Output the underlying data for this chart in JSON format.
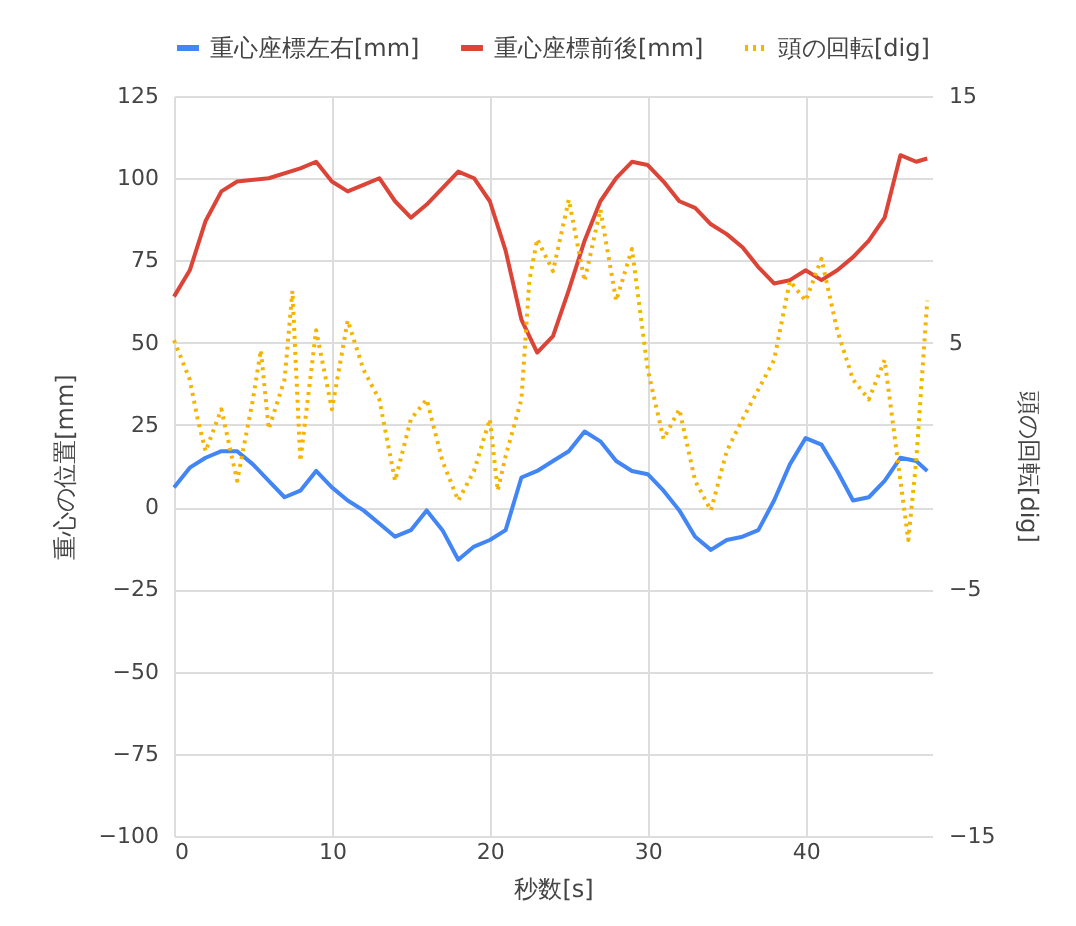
{
  "chart_data": {
    "type": "line",
    "xlabel": "秒数[s]",
    "ylabel": "重心の位置[mm]",
    "y2label": "頭の回転[dig]",
    "xlim": [
      0,
      48
    ],
    "xticks": [
      0,
      10,
      20,
      30,
      40
    ],
    "ylim": [
      -100,
      125
    ],
    "yticks": [
      -100,
      -75,
      -50,
      -25,
      0,
      25,
      50,
      75,
      100,
      125
    ],
    "y2lim": [
      -15,
      15
    ],
    "y2ticks": [
      -15,
      -5,
      5,
      15
    ],
    "grid": true,
    "legend": "top",
    "marker": "none",
    "series": [
      {
        "name": "重心座標左右[mm]",
        "color": "#4285f4",
        "line_style": "solid",
        "x": [
          0,
          1,
          2,
          3,
          4,
          5,
          6,
          7,
          8,
          9,
          10,
          11,
          12,
          13,
          14,
          15,
          16,
          17,
          18,
          19,
          20,
          21,
          22,
          23,
          24,
          25,
          26,
          27,
          28,
          29,
          30,
          31,
          32,
          33,
          34,
          35,
          36,
          37,
          38,
          39,
          40,
          41,
          42,
          43,
          44,
          45,
          46,
          47,
          47.7
        ],
        "values": [
          6,
          12,
          15,
          17,
          17,
          13,
          8,
          3,
          5,
          11,
          6,
          2,
          -1,
          -5,
          -9,
          -7,
          -1,
          -7,
          -16,
          -12,
          -10,
          -7,
          9,
          11,
          14,
          17,
          23,
          20,
          14,
          11,
          10,
          5,
          -1,
          -9,
          -13,
          -10,
          -9,
          -7,
          2,
          13,
          21,
          19,
          11,
          2,
          3,
          8,
          15,
          14,
          11
        ]
      },
      {
        "name": "重心座標前後[mm]",
        "color": "#db4437",
        "line_style": "solid",
        "x": [
          0,
          1,
          2,
          3,
          4,
          6,
          8,
          9,
          10,
          11,
          12,
          13,
          14,
          15,
          16,
          17,
          18,
          19,
          20,
          21,
          22,
          23,
          24,
          25,
          26,
          27,
          28,
          29,
          30,
          31,
          32,
          33,
          34,
          35,
          36,
          37,
          38,
          39,
          40,
          41,
          42,
          43,
          44,
          45,
          46,
          47,
          47.7
        ],
        "values": [
          64,
          72,
          87,
          96,
          99,
          100,
          103,
          105,
          99,
          96,
          98,
          100,
          93,
          88,
          92,
          97,
          102,
          100,
          93,
          78,
          57,
          47,
          52,
          66,
          81,
          93,
          100,
          105,
          104,
          99,
          93,
          91,
          86,
          83,
          79,
          73,
          68,
          69,
          72,
          69,
          72,
          76,
          81,
          88,
          107,
          105,
          106
        ]
      },
      {
        "name": "頭の回転[dig]",
        "color": "#f4b400",
        "line_style": "dotted",
        "axis": "y2",
        "x": [
          0,
          1,
          1.5,
          2,
          3,
          4,
          5,
          5.5,
          6,
          7,
          7.5,
          8,
          9,
          10,
          11,
          12,
          13,
          14,
          15,
          16,
          17,
          18,
          19,
          20,
          20.5,
          21,
          22,
          22.5,
          23,
          24,
          25,
          26,
          27,
          28,
          29,
          30,
          31,
          32,
          33,
          34,
          35,
          36,
          37,
          38,
          39,
          40,
          41,
          42,
          43,
          44,
          45,
          46,
          46.5,
          47,
          47.7
        ],
        "values": [
          5.1,
          3.5,
          1.9,
          0.6,
          2.3,
          -0.6,
          2.7,
          4.7,
          1.5,
          3.5,
          7.1,
          0.2,
          5.5,
          2.3,
          5.9,
          3.9,
          2.7,
          -0.6,
          1.9,
          2.7,
          0.2,
          -1.4,
          -0.2,
          1.9,
          -1.0,
          0.4,
          2.7,
          7.5,
          9.2,
          7.9,
          10.8,
          7.5,
          10.4,
          6.7,
          8.8,
          3.9,
          1.1,
          2.3,
          -0.6,
          -1.8,
          0.6,
          1.9,
          3.1,
          4.3,
          7.5,
          6.7,
          8.4,
          5.5,
          3.5,
          2.7,
          4.3,
          -0.6,
          -3.0,
          0.2,
          6.7
        ]
      }
    ]
  }
}
